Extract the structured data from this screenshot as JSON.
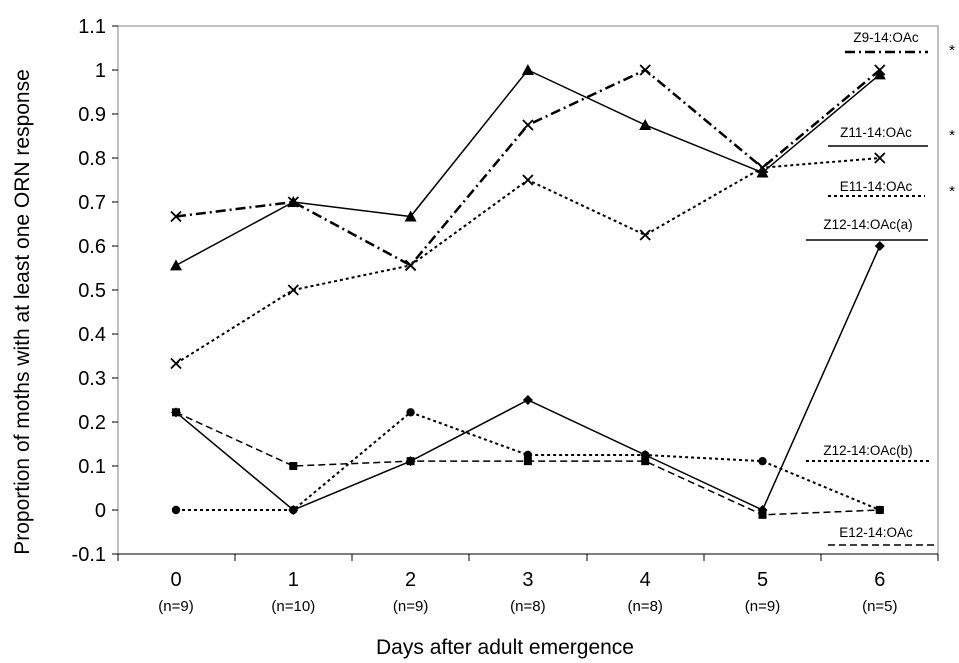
{
  "chart_data": {
    "type": "line",
    "title": "",
    "xlabel": "Days after adult emergence",
    "ylabel": "Proportion of moths with at least one ORN response",
    "ylim": [
      -0.1,
      1.1
    ],
    "yticks": [
      "-0.1",
      "0",
      "0.1",
      "0.2",
      "0.3",
      "0.4",
      "0.5",
      "0.6",
      "0.7",
      "0.8",
      "0.9",
      "1",
      "1.1"
    ],
    "x": [
      0,
      1,
      2,
      3,
      4,
      5,
      6
    ],
    "xtick_labels": [
      "0",
      "1",
      "2",
      "3",
      "4",
      "5",
      "6"
    ],
    "n_labels": [
      "(n=9)",
      "(n=10)",
      "(n=9)",
      "(n=8)",
      "(n=8)",
      "(n=9)",
      "(n=5)"
    ],
    "grid": false,
    "legend_position": "right, beside each line",
    "series": [
      {
        "name": "Z9-14:OAc",
        "marker": "x",
        "dash": "dashdot",
        "stroke": 2.5,
        "values": [
          0.667,
          0.7,
          0.556,
          0.875,
          1.0,
          0.778,
          1.0
        ],
        "starred": true
      },
      {
        "name": "Z11-14:OAc",
        "marker": "triangle",
        "dash": "solid",
        "stroke": 1.5,
        "values": [
          0.556,
          0.7,
          0.667,
          1.0,
          0.875,
          0.767,
          0.99
        ],
        "starred": true
      },
      {
        "name": "E11-14:OAc",
        "marker": "x",
        "dash": "dotted",
        "stroke": 2,
        "values": [
          0.333,
          0.5,
          0.556,
          0.75,
          0.625,
          0.778,
          0.8
        ],
        "starred": true
      },
      {
        "name": "Z12-14:OAc(a)",
        "marker": "diamond",
        "dash": "solid",
        "stroke": 1.5,
        "values": [
          0.222,
          0.0,
          0.111,
          0.25,
          0.125,
          0.0,
          0.6
        ],
        "starred": false
      },
      {
        "name": "Z12-14:OAc(b)",
        "marker": "circle",
        "dash": "dotted",
        "stroke": 2,
        "values": [
          0.0,
          0.0,
          0.222,
          0.125,
          0.125,
          0.111,
          0.0
        ],
        "starred": false
      },
      {
        "name": "E12-14:OAc",
        "marker": "square",
        "dash": "dashed",
        "stroke": 1.5,
        "values": [
          0.222,
          0.1,
          0.111,
          0.111,
          0.111,
          -0.011,
          0.0
        ],
        "starred": false
      }
    ],
    "star_symbol": "*"
  }
}
